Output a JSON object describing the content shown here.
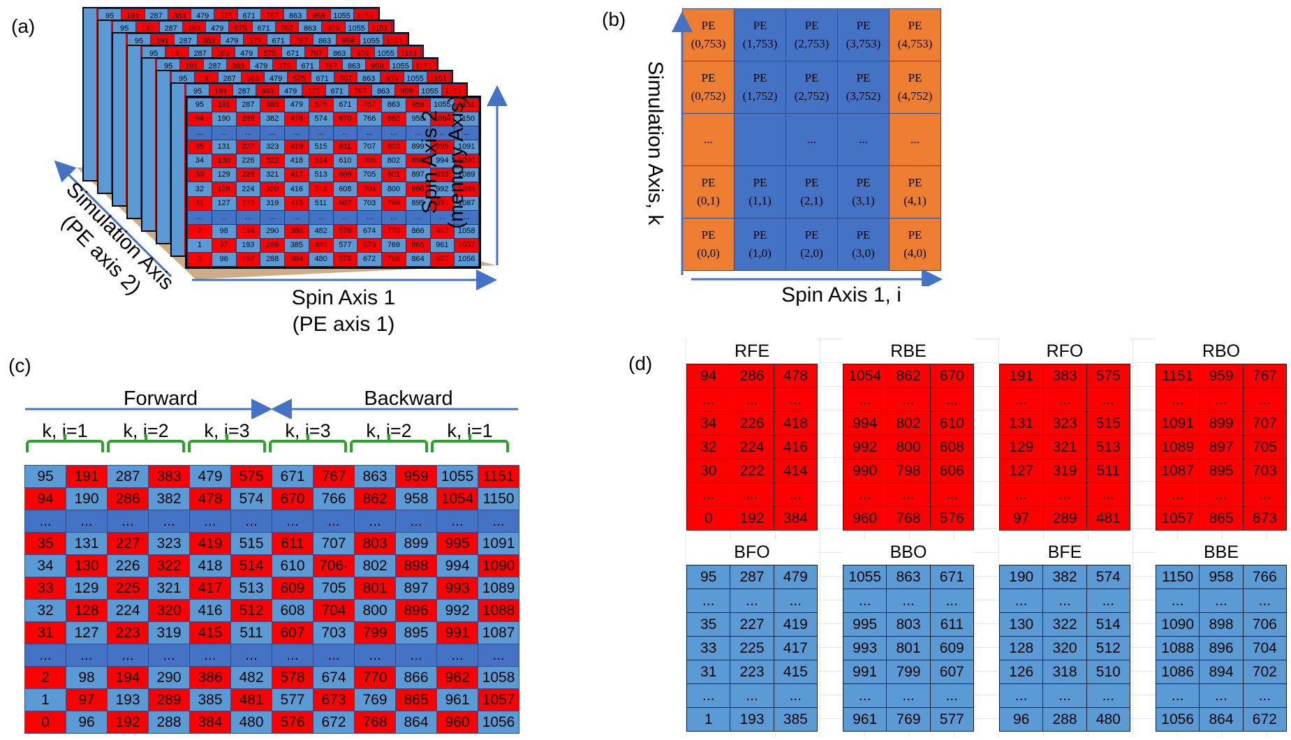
{
  "panel_labels": {
    "a": "(a)",
    "b": "(b)",
    "c": "(c)",
    "d": "(d)"
  },
  "colors": {
    "red": "#ff0000",
    "light_blue": "#5b9bd5",
    "dark_blue": "#4472c4",
    "orange": "#ed7d31",
    "axis_blue": "#4472c4",
    "brace_green": "#28a428"
  },
  "panel_a": {
    "axis_spin2": "Spin Axis 2",
    "axis_spin2_sub": "(memory Axis)",
    "axis_sim": "Simulation Axis",
    "axis_sim_sub": "(PE axis 2)",
    "axis_spin1": "Spin Axis 1",
    "axis_spin1_sub": "(PE axis 1)",
    "stack_top_row": [
      "95",
      "191",
      "287",
      "383",
      "479",
      "575",
      "671",
      "767",
      "863",
      "959",
      "1055",
      "1151"
    ],
    "front_rows": [
      [
        "95",
        "191",
        "287",
        "383",
        "479",
        "575",
        "671",
        "767",
        "863",
        "959",
        "1055",
        "1151"
      ],
      [
        "94",
        "190",
        "286",
        "382",
        "478",
        "574",
        "670",
        "766",
        "862",
        "958",
        "1054",
        "1150"
      ],
      [
        "...",
        "...",
        "...",
        "...",
        "...",
        "...",
        "...",
        "...",
        "...",
        "...",
        "...",
        "..."
      ],
      [
        "35",
        "131",
        "227",
        "323",
        "419",
        "515",
        "611",
        "707",
        "803",
        "899",
        "995",
        "1091"
      ],
      [
        "34",
        "130",
        "226",
        "322",
        "418",
        "514",
        "610",
        "706",
        "802",
        "898",
        "994",
        "1090"
      ],
      [
        "33",
        "129",
        "225",
        "321",
        "417",
        "513",
        "609",
        "705",
        "801",
        "897",
        "993",
        "1089"
      ],
      [
        "32",
        "128",
        "224",
        "320",
        "416",
        "512",
        "608",
        "704",
        "800",
        "896",
        "992",
        "1088"
      ],
      [
        "31",
        "127",
        "223",
        "319",
        "415",
        "511",
        "607",
        "703",
        "799",
        "895",
        "991",
        "1087"
      ],
      [
        "...",
        "...",
        "...",
        "...",
        "...",
        "...",
        "...",
        "...",
        "...",
        "...",
        "...",
        "..."
      ],
      [
        "2",
        "98",
        "194",
        "290",
        "386",
        "482",
        "578",
        "674",
        "770",
        "866",
        "962",
        "1058"
      ],
      [
        "1",
        "97",
        "193",
        "289",
        "385",
        "481",
        "577",
        "673",
        "769",
        "865",
        "961",
        "1057"
      ],
      [
        "0",
        "96",
        "192",
        "288",
        "384",
        "480",
        "576",
        "672",
        "768",
        "864",
        "960",
        "1056"
      ]
    ]
  },
  "panel_b": {
    "y_axis": "Simulation Axis, k",
    "x_axis": "Spin Axis 1, i",
    "pe_word": "PE",
    "ellipsis": "...",
    "rows": [
      [
        "(0,753)",
        "(1,753)",
        "(2,753)",
        "(3,753)",
        "(4,753)"
      ],
      [
        "(0,752)",
        "(1,752)",
        "(2,752)",
        "(3,752)",
        "(4,752)"
      ],
      [
        "...",
        "",
        "...",
        "...",
        "..."
      ],
      [
        "(0,1)",
        "(1,1)",
        "(2,1)",
        "(3,1)",
        "(4,1)"
      ],
      [
        "(0,0)",
        "(1,0)",
        "(2,0)",
        "(3,0)",
        "(4,0)"
      ]
    ]
  },
  "panel_c": {
    "forward": "Forward",
    "backward": "Backward",
    "groups": [
      "k, i=1",
      "k, i=2",
      "k, i=3",
      "k, i=3",
      "k, i=2",
      "k, i=1"
    ],
    "rows": [
      [
        "95",
        "191",
        "287",
        "383",
        "479",
        "575",
        "671",
        "767",
        "863",
        "959",
        "1055",
        "1151"
      ],
      [
        "94",
        "190",
        "286",
        "382",
        "478",
        "574",
        "670",
        "766",
        "862",
        "958",
        "1054",
        "1150"
      ],
      [
        "...",
        "...",
        "...",
        "...",
        "...",
        "...",
        "...",
        "...",
        "...",
        "...",
        "...",
        "..."
      ],
      [
        "35",
        "131",
        "227",
        "323",
        "419",
        "515",
        "611",
        "707",
        "803",
        "899",
        "995",
        "1091"
      ],
      [
        "34",
        "130",
        "226",
        "322",
        "418",
        "514",
        "610",
        "706·",
        "802",
        "898",
        "994",
        "1090"
      ],
      [
        "33",
        "129",
        "225",
        "321",
        "417",
        "513",
        "609",
        "705",
        "801",
        "897",
        "993",
        "1089"
      ],
      [
        "32",
        "128",
        "224",
        "320",
        "416",
        "512",
        "608",
        "704",
        "800",
        "896",
        "992",
        "1088"
      ],
      [
        "31",
        "127",
        "223",
        "319",
        "415",
        "511",
        "607",
        "703",
        "799",
        "895",
        "991",
        "1087"
      ],
      [
        "...",
        "...",
        "...",
        "...",
        "...",
        "...",
        "...",
        "...",
        "...",
        "...",
        "...",
        "..."
      ],
      [
        "2",
        "98",
        "194",
        "290",
        "386",
        "482",
        "578",
        "674",
        "770",
        "866",
        "962",
        "1058"
      ],
      [
        "1",
        "97",
        "193",
        "289",
        "385",
        "481",
        "577",
        "673",
        "769",
        "865",
        "961",
        "1057"
      ],
      [
        "0",
        "96",
        "192",
        "288",
        "384",
        "480",
        "576",
        "672",
        "768",
        "864",
        "960",
        "1056"
      ]
    ]
  },
  "panel_d": {
    "blocks": [
      {
        "title": "RFE",
        "color": "red",
        "rows": [
          [
            "94",
            "286",
            "478"
          ],
          [
            "...",
            "...",
            "..."
          ],
          [
            "34",
            "226",
            "418"
          ],
          [
            "32",
            "224",
            "416"
          ],
          [
            "30",
            "222",
            "414"
          ],
          [
            "...",
            "...",
            "..."
          ],
          [
            "0",
            "192",
            "384"
          ]
        ]
      },
      {
        "title": "RBE",
        "color": "red",
        "rows": [
          [
            "1054",
            "862",
            "670"
          ],
          [
            "...",
            "...",
            "..."
          ],
          [
            "994",
            "802",
            "610"
          ],
          [
            "992",
            "800",
            "608"
          ],
          [
            "990",
            "798",
            "606"
          ],
          [
            "...",
            "...",
            "..."
          ],
          [
            "960",
            "768",
            "576"
          ]
        ]
      },
      {
        "title": "RFO",
        "color": "red",
        "rows": [
          [
            "191",
            "383",
            "575"
          ],
          [
            "...",
            "...",
            "..."
          ],
          [
            "131",
            "323",
            "515"
          ],
          [
            "129",
            "321",
            "513"
          ],
          [
            "127",
            "319",
            "511"
          ],
          [
            "...",
            "...",
            "..."
          ],
          [
            "97",
            "289",
            "481"
          ]
        ]
      },
      {
        "title": "RBO",
        "color": "red",
        "rows": [
          [
            "1151",
            "959",
            "767"
          ],
          [
            "...",
            "...",
            "..."
          ],
          [
            "1091",
            "899",
            "707"
          ],
          [
            "1089",
            "897",
            "705"
          ],
          [
            "1087",
            "895",
            "703"
          ],
          [
            "...",
            "...",
            "..."
          ],
          [
            "1057",
            "865",
            "673"
          ]
        ]
      },
      {
        "title": "BFO",
        "color": "blue",
        "rows": [
          [
            "95",
            "287",
            "479"
          ],
          [
            "...",
            "...",
            "..."
          ],
          [
            "35",
            "227",
            "419"
          ],
          [
            "33",
            "225",
            "417"
          ],
          [
            "31",
            "223",
            "415"
          ],
          [
            "...",
            "...",
            "..."
          ],
          [
            "1",
            "193",
            "385"
          ]
        ]
      },
      {
        "title": "BBO",
        "color": "blue",
        "rows": [
          [
            "1055",
            "863",
            "671"
          ],
          [
            "...",
            "...",
            "..."
          ],
          [
            "995",
            "803",
            "611"
          ],
          [
            "993",
            "801",
            "609"
          ],
          [
            "991",
            "799",
            "607"
          ],
          [
            "...",
            "...",
            "..."
          ],
          [
            "961",
            "769",
            "577"
          ]
        ]
      },
      {
        "title": "BFE",
        "color": "blue",
        "rows": [
          [
            "190",
            "382",
            "574"
          ],
          [
            "...",
            "...",
            "..."
          ],
          [
            "130",
            "322",
            "514"
          ],
          [
            "128",
            "320",
            "512"
          ],
          [
            "126",
            "318",
            "510"
          ],
          [
            "...",
            "...",
            "..."
          ],
          [
            "96",
            "288",
            "480"
          ]
        ]
      },
      {
        "title": "BBE",
        "color": "blue",
        "rows": [
          [
            "1150",
            "958",
            "766"
          ],
          [
            "...",
            "...",
            "..."
          ],
          [
            "1090",
            "898",
            "706"
          ],
          [
            "1088",
            "896",
            "704"
          ],
          [
            "1086",
            "894",
            "702"
          ],
          [
            "...",
            "...",
            "..."
          ],
          [
            "1056",
            "864",
            "672"
          ]
        ]
      }
    ]
  }
}
